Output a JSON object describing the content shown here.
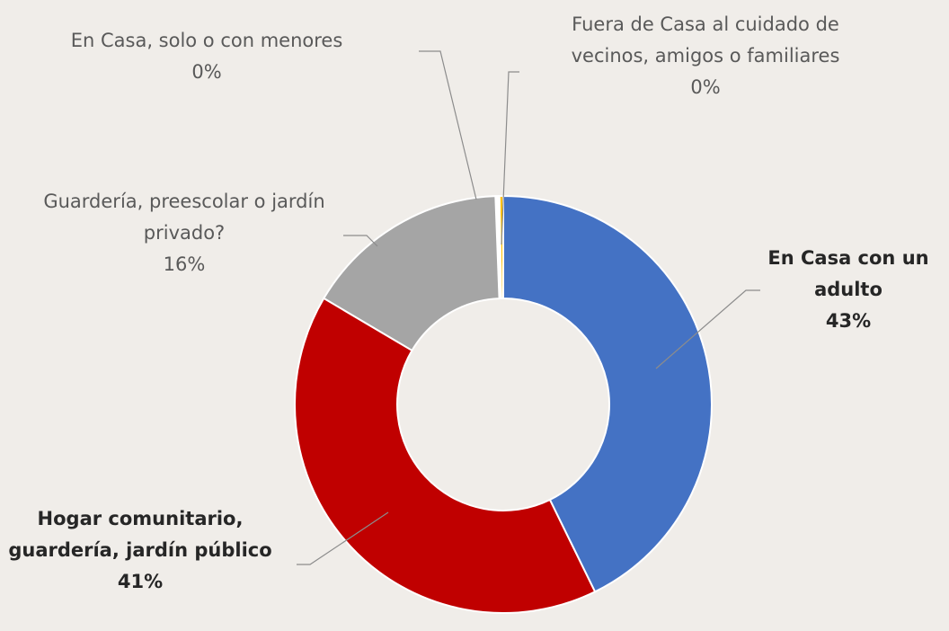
{
  "chart_data": {
    "type": "donut",
    "categories": [
      "En Casa con un adulto",
      "Hogar comunitario, guardería, jardín público",
      "Guardería, preescolar o jardín privado?",
      "En Casa, solo o con menores",
      "Fuera de Casa al cuidado de vecinos, amigos o familiares"
    ],
    "values": [
      43,
      41,
      16,
      0.3,
      0.3
    ],
    "value_labels": [
      "43%",
      "41%",
      "16%",
      "0%",
      "0%"
    ],
    "colors": [
      "#4472c4",
      "#c00000",
      "#a5a5a5",
      "#ffffff",
      "#ffc000"
    ]
  }
}
